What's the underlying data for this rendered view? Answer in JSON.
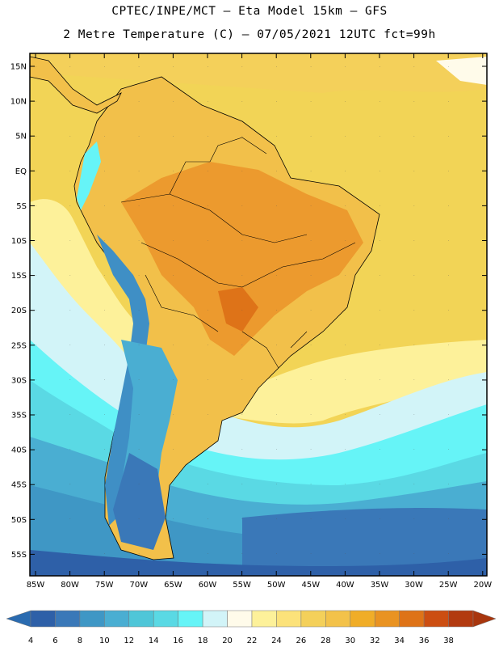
{
  "title": {
    "line1": "CPTEC/INPE/MCT –  Eta Model 15km – GFS",
    "line2": "2 Metre Temperature (C) – 07/05/2021 12UTC fct=99h"
  },
  "lat_labels": [
    "15N",
    "10N",
    "5N",
    "EQ",
    "5S",
    "10S",
    "15S",
    "20S",
    "25S",
    "30S",
    "35S",
    "40S",
    "45S",
    "50S",
    "55S"
  ],
  "lon_labels": [
    "85W",
    "80W",
    "75W",
    "70W",
    "65W",
    "60W",
    "55W",
    "50W",
    "45W",
    "40W",
    "35W",
    "30W",
    "25W",
    "20W"
  ],
  "colorbar": {
    "labels": [
      "4",
      "6",
      "8",
      "10",
      "12",
      "14",
      "16",
      "18",
      "20",
      "22",
      "24",
      "26",
      "28",
      "30",
      "32",
      "34",
      "36",
      "38"
    ],
    "colors": [
      "#2e60a8",
      "#3a78b8",
      "#3f97c5",
      "#4aaed2",
      "#4fc6d8",
      "#5ad9e4",
      "#66f4f7",
      "#d2f4f8",
      "#fffbea",
      "#fdf19a",
      "#fce27a",
      "#f4d05a",
      "#f3c24a",
      "#f0ad28",
      "#e99322",
      "#de7318",
      "#cc4e12",
      "#b23a10"
    ],
    "low_color": "#2a6bb0",
    "high_color": "#a8360e"
  },
  "colors": {
    "ocean_north": "#f2d456",
    "ocean_warm": "#fbe680",
    "ocean_mid": "#5ad9e4",
    "ocean_cool": "#4aaed2",
    "ocean_cold": "#3a78b8",
    "ocean_coldest": "#2e60a8",
    "land_hot": "#ec9a2e",
    "land_warm": "#f2c04a",
    "land_andes": "#3f8fc5"
  }
}
